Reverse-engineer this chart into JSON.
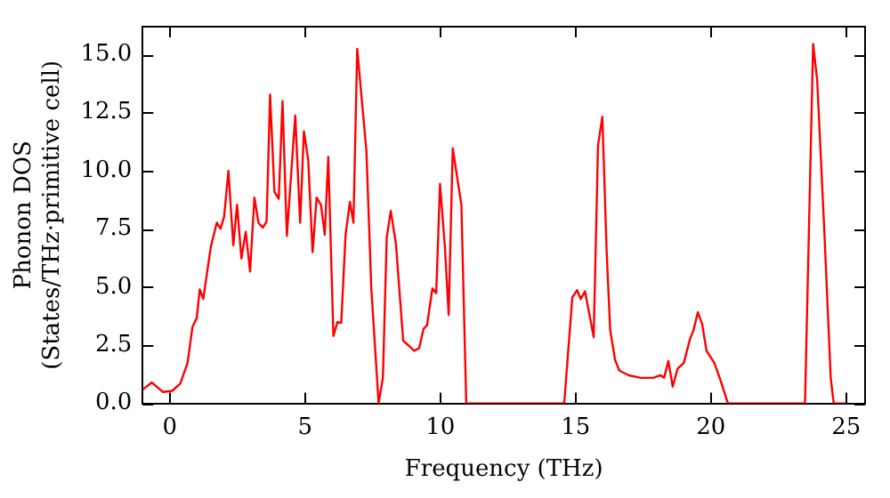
{
  "chart_data": {
    "type": "line",
    "xlabel": "Frequency (THz)",
    "ylabel": "Phonon DOS\n(States/THz·primitive cell)",
    "xlim": [
      -1,
      25.7
    ],
    "ylim": [
      0,
      16.2
    ],
    "xticks": [
      0,
      5,
      10,
      15,
      20,
      25
    ],
    "yticks": [
      {
        "value": 0,
        "label": "0.0"
      },
      {
        "value": 2.5,
        "label": "2.5"
      },
      {
        "value": 5,
        "label": "5.0"
      },
      {
        "value": 7.5,
        "label": "7.5"
      },
      {
        "value": 10,
        "label": "10.0"
      },
      {
        "value": 12.5,
        "label": "12.5"
      },
      {
        "value": 15,
        "label": "15.0"
      }
    ],
    "grid": false,
    "legend": false,
    "marker": "none",
    "line_style": "solid",
    "series": [
      {
        "color": "#ff0000",
        "x": [
          -1.0,
          -0.66,
          -0.25,
          0.09,
          0.39,
          0.66,
          0.84,
          1.0,
          1.11,
          1.24,
          1.52,
          1.74,
          1.88,
          2.01,
          2.17,
          2.35,
          2.49,
          2.65,
          2.81,
          2.97,
          3.13,
          3.28,
          3.44,
          3.58,
          3.71,
          3.87,
          4.03,
          4.17,
          4.33,
          4.64,
          4.82,
          4.96,
          5.12,
          5.28,
          5.43,
          5.59,
          5.73,
          5.86,
          6.05,
          6.2,
          6.34,
          6.5,
          6.66,
          6.79,
          6.93,
          7.27,
          7.45,
          7.72,
          7.88,
          8.02,
          8.17,
          8.36,
          8.63,
          8.81,
          9.04,
          9.22,
          9.38,
          9.51,
          9.71,
          9.85,
          9.99,
          10.17,
          10.31,
          10.46,
          10.78,
          10.96,
          14.58,
          14.88,
          15.06,
          15.19,
          15.35,
          15.67,
          15.83,
          15.99,
          16.15,
          16.28,
          16.46,
          16.62,
          16.96,
          17.41,
          17.87,
          18.14,
          18.27,
          18.43,
          18.59,
          18.77,
          19.0,
          19.23,
          19.36,
          19.52,
          19.68,
          19.84,
          20.13,
          20.36,
          20.63,
          23.48,
          23.78,
          23.93,
          24.2,
          24.43,
          24.54,
          25.0
        ],
        "values": [
          0.59,
          0.9,
          0.49,
          0.54,
          0.85,
          1.74,
          3.28,
          3.67,
          4.9,
          4.49,
          6.74,
          7.77,
          7.51,
          8.03,
          10.0,
          6.8,
          8.54,
          6.23,
          7.38,
          5.67,
          8.85,
          7.77,
          7.56,
          7.82,
          13.28,
          9.1,
          8.8,
          13.0,
          7.2,
          12.38,
          7.77,
          11.7,
          10.46,
          6.5,
          8.85,
          8.54,
          7.25,
          10.6,
          2.9,
          3.5,
          3.46,
          7.25,
          8.67,
          7.77,
          15.25,
          10.85,
          4.95,
          0.02,
          1.1,
          7.13,
          8.28,
          6.87,
          2.69,
          2.51,
          2.26,
          2.38,
          3.2,
          3.36,
          4.95,
          4.74,
          9.44,
          6.74,
          3.8,
          10.97,
          8.54,
          0,
          0,
          4.56,
          4.87,
          4.49,
          4.82,
          2.85,
          11.1,
          12.33,
          6.49,
          3.15,
          1.87,
          1.41,
          1.21,
          1.1,
          1.1,
          1.21,
          1.1,
          1.82,
          0.72,
          1.49,
          1.74,
          2.77,
          3.15,
          3.92,
          3.41,
          2.26,
          1.74,
          0.98,
          0,
          0,
          15.46,
          13.9,
          7.25,
          1.1,
          0,
          0
        ]
      }
    ]
  }
}
